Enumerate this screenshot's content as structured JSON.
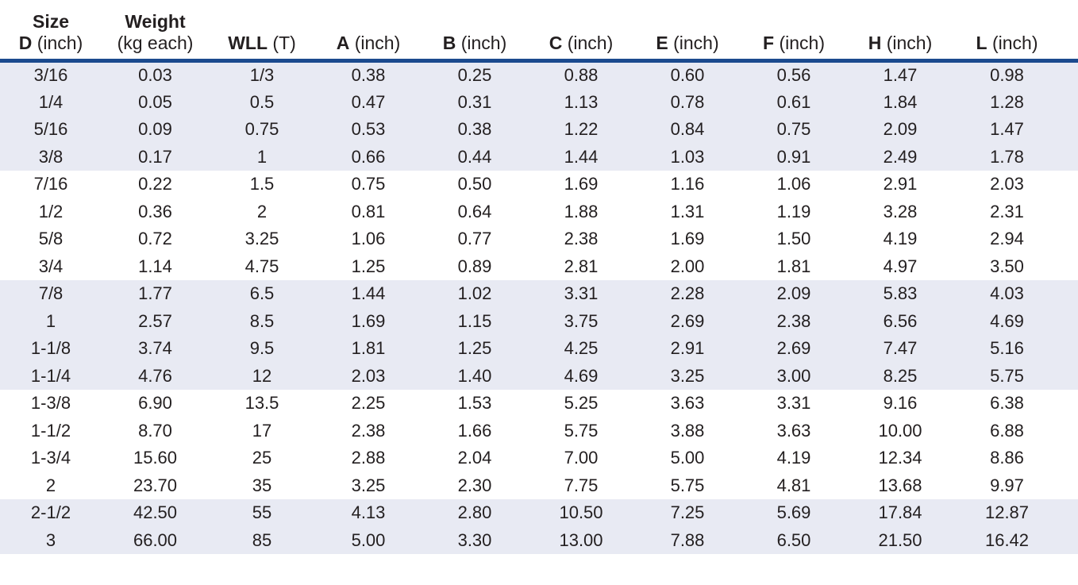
{
  "colors": {
    "accent_line": "#1b4a8e",
    "row_band": "#e8eaf3",
    "text": "#231f20",
    "background": "#ffffff"
  },
  "table": {
    "columns": [
      {
        "top": "Size",
        "bottom_bold": "D",
        "bottom_rest": " (inch)"
      },
      {
        "top": "Weight",
        "bottom_bold": "",
        "bottom_rest": "(kg each)"
      },
      {
        "top": "",
        "bottom_bold": "WLL",
        "bottom_rest": " (T)"
      },
      {
        "top": "",
        "bottom_bold": "A",
        "bottom_rest": " (inch)"
      },
      {
        "top": "",
        "bottom_bold": "B",
        "bottom_rest": " (inch)"
      },
      {
        "top": "",
        "bottom_bold": "C",
        "bottom_rest": " (inch)"
      },
      {
        "top": "",
        "bottom_bold": "E",
        "bottom_rest": " (inch)"
      },
      {
        "top": "",
        "bottom_bold": "F",
        "bottom_rest": " (inch)"
      },
      {
        "top": "",
        "bottom_bold": "H",
        "bottom_rest": " (inch)"
      },
      {
        "top": "",
        "bottom_bold": "L",
        "bottom_rest": " (inch)"
      }
    ],
    "rows": [
      [
        "3/16",
        "0.03",
        "1/3",
        "0.38",
        "0.25",
        "0.88",
        "0.60",
        "0.56",
        "1.47",
        "0.98"
      ],
      [
        "1/4",
        "0.05",
        "0.5",
        "0.47",
        "0.31",
        "1.13",
        "0.78",
        "0.61",
        "1.84",
        "1.28"
      ],
      [
        "5/16",
        "0.09",
        "0.75",
        "0.53",
        "0.38",
        "1.22",
        "0.84",
        "0.75",
        "2.09",
        "1.47"
      ],
      [
        "3/8",
        "0.17",
        "1",
        "0.66",
        "0.44",
        "1.44",
        "1.03",
        "0.91",
        "2.49",
        "1.78"
      ],
      [
        "7/16",
        "0.22",
        "1.5",
        "0.75",
        "0.50",
        "1.69",
        "1.16",
        "1.06",
        "2.91",
        "2.03"
      ],
      [
        "1/2",
        "0.36",
        "2",
        "0.81",
        "0.64",
        "1.88",
        "1.31",
        "1.19",
        "3.28",
        "2.31"
      ],
      [
        "5/8",
        "0.72",
        "3.25",
        "1.06",
        "0.77",
        "2.38",
        "1.69",
        "1.50",
        "4.19",
        "2.94"
      ],
      [
        "3/4",
        "1.14",
        "4.75",
        "1.25",
        "0.89",
        "2.81",
        "2.00",
        "1.81",
        "4.97",
        "3.50"
      ],
      [
        "7/8",
        "1.77",
        "6.5",
        "1.44",
        "1.02",
        "3.31",
        "2.28",
        "2.09",
        "5.83",
        "4.03"
      ],
      [
        "1",
        "2.57",
        "8.5",
        "1.69",
        "1.15",
        "3.75",
        "2.69",
        "2.38",
        "6.56",
        "4.69"
      ],
      [
        "1-1/8",
        "3.74",
        "9.5",
        "1.81",
        "1.25",
        "4.25",
        "2.91",
        "2.69",
        "7.47",
        "5.16"
      ],
      [
        "1-1/4",
        "4.76",
        "12",
        "2.03",
        "1.40",
        "4.69",
        "3.25",
        "3.00",
        "8.25",
        "5.75"
      ],
      [
        "1-3/8",
        "6.90",
        "13.5",
        "2.25",
        "1.53",
        "5.25",
        "3.63",
        "3.31",
        "9.16",
        "6.38"
      ],
      [
        "1-1/2",
        "8.70",
        "17",
        "2.38",
        "1.66",
        "5.75",
        "3.88",
        "3.63",
        "10.00",
        "6.88"
      ],
      [
        "1-3/4",
        "15.60",
        "25",
        "2.88",
        "2.04",
        "7.00",
        "5.00",
        "4.19",
        "12.34",
        "8.86"
      ],
      [
        "2",
        "23.70",
        "35",
        "3.25",
        "2.30",
        "7.75",
        "5.75",
        "4.81",
        "13.68",
        "9.97"
      ],
      [
        "2-1/2",
        "42.50",
        "55",
        "4.13",
        "2.80",
        "10.50",
        "7.25",
        "5.69",
        "17.84",
        "12.87"
      ],
      [
        "3",
        "66.00",
        "85",
        "5.00",
        "3.30",
        "13.00",
        "7.88",
        "6.50",
        "21.50",
        "16.42"
      ]
    ]
  }
}
